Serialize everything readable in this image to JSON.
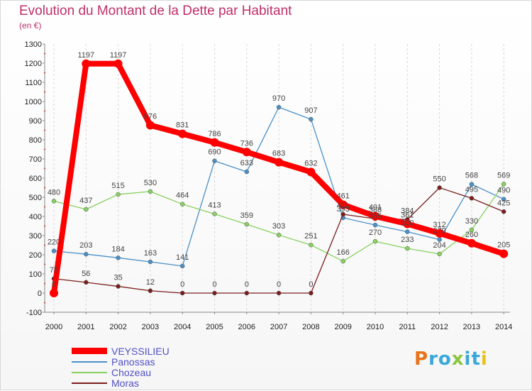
{
  "chart_data": {
    "type": "line",
    "title": "Evolution du Montant de la Dette par Habitant",
    "subtitle": "(en €)",
    "x": [
      2000,
      2001,
      2002,
      2003,
      2004,
      2005,
      2006,
      2007,
      2008,
      2009,
      2010,
      2011,
      2012,
      2013,
      2014
    ],
    "yticks": [
      -100,
      0,
      100,
      200,
      300,
      400,
      500,
      600,
      700,
      800,
      900,
      1000,
      1100,
      1200,
      1300
    ],
    "ylim": [
      -100,
      1300
    ],
    "grid": "vertical dashed",
    "legend_position": "bottom-left",
    "series": [
      {
        "name": "VEYSSILIEU",
        "color": "#ff0000",
        "values": [
          0,
          1197,
          1197,
          876,
          831,
          786,
          736,
          683,
          632,
          461,
          401,
          361,
          312,
          260,
          205
        ],
        "labels": [
          "0",
          "1197",
          "1197",
          "876",
          "831",
          "786",
          "736",
          "683",
          "632",
          "461",
          "401",
          "361",
          "312",
          "260",
          "205"
        ]
      },
      {
        "name": "Panossas",
        "color": "#4a90c8",
        "values": [
          220,
          203,
          184,
          163,
          141,
          690,
          633,
          970,
          907,
          393,
          355,
          320,
          279,
          568,
          490
        ],
        "labels": [
          "220",
          "203",
          "184",
          "163",
          "141",
          "690",
          "633",
          "970",
          "907",
          "393",
          "355",
          "320",
          "279",
          "568",
          "490"
        ]
      },
      {
        "name": "Chozeau",
        "color": "#88d060",
        "values": [
          480,
          437,
          515,
          530,
          464,
          413,
          359,
          303,
          251,
          166,
          270,
          233,
          204,
          330,
          569
        ],
        "labels": [
          "480",
          "437",
          "515",
          "530",
          "464",
          "413",
          "359",
          "303",
          "251",
          "166",
          "270",
          "233",
          "204",
          "330",
          "569"
        ]
      },
      {
        "name": "Moras",
        "color": "#7a1e1e",
        "values": [
          75,
          56,
          35,
          12,
          0,
          0,
          0,
          0,
          0,
          411,
          388,
          384,
          550,
          495,
          425
        ],
        "labels": [
          "75",
          "56",
          "35",
          "12",
          "0",
          "0",
          "0",
          "0",
          "0",
          "411",
          "388",
          "384",
          "550",
          "495",
          "425"
        ]
      }
    ]
  },
  "branding": {
    "logo_letters": [
      "P",
      "r",
      "o",
      "x",
      "i",
      "t",
      "i"
    ],
    "logo_colors": [
      "#e8731a",
      "#3aa8d8",
      "#3aa8d8",
      "#8cc63f",
      "#3aa8d8",
      "#3aa8d8",
      "#e8c21a"
    ]
  }
}
